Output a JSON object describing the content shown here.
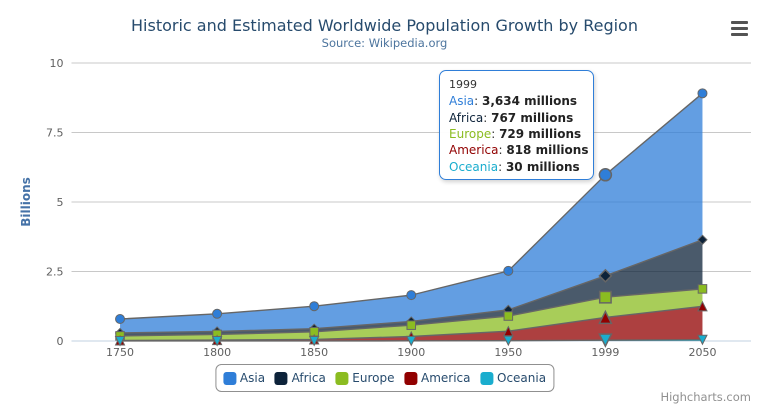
{
  "header": {
    "title": "Historic and Estimated Worldwide Population Growth by Region",
    "subtitle": "Source: Wikipedia.org"
  },
  "chart_data": {
    "type": "area",
    "stacking": "normal",
    "categories": [
      "1750",
      "1800",
      "1850",
      "1900",
      "1950",
      "1999",
      "2050"
    ],
    "series": [
      {
        "name": "Asia",
        "color": "#2f7ed8",
        "marker": "circle",
        "values": [
          502,
          635,
          809,
          947,
          1402,
          3634,
          5268
        ]
      },
      {
        "name": "Africa",
        "color": "#0d233a",
        "marker": "diamond",
        "values": [
          106,
          107,
          111,
          133,
          221,
          767,
          1766
        ]
      },
      {
        "name": "Europe",
        "color": "#8bbc21",
        "marker": "square",
        "values": [
          163,
          203,
          276,
          408,
          547,
          729,
          628
        ]
      },
      {
        "name": "America",
        "color": "#910000",
        "marker": "triangle",
        "values": [
          18,
          31,
          54,
          156,
          339,
          818,
          1201
        ]
      },
      {
        "name": "Oceania",
        "color": "#1aadce",
        "marker": "triangle-down",
        "values": [
          2,
          2,
          2,
          6,
          13,
          30,
          46
        ]
      }
    ],
    "stack_order_bottom_to_top": [
      "Oceania",
      "America",
      "Europe",
      "Africa",
      "Asia"
    ],
    "unit": "millions",
    "ylabel": "Billions",
    "xlabel": "",
    "yaxis": {
      "tick_values_millions": [
        0,
        2500,
        5000,
        7500,
        10000
      ],
      "tick_labels": [
        "0",
        "2.5",
        "5",
        "7.5",
        "10"
      ],
      "max_millions": 10000
    },
    "hover_index": 5,
    "grid_on": true,
    "legend_position": "bottom",
    "style": {
      "line_color": "#666666",
      "fill_opacity": 0.75,
      "grid_color": "#c8c8c8",
      "axis_line_color": "#c0d0e0",
      "axis_label_color": "#606060",
      "yaxis_title_color": "#4572a7"
    }
  },
  "tooltip": {
    "header": "1999",
    "rows": [
      {
        "name": "Asia",
        "color": "#2f7ed8",
        "value": "3,634 millions"
      },
      {
        "name": "Africa",
        "color": "#0d233a",
        "value": "767 millions"
      },
      {
        "name": "Europe",
        "color": "#8bbc21",
        "value": "729 millions"
      },
      {
        "name": "America",
        "color": "#910000",
        "value": "818 millions"
      },
      {
        "name": "Oceania",
        "color": "#1aadce",
        "value": "30 millions"
      }
    ]
  },
  "legend": {
    "items": [
      {
        "label": "Asia",
        "color": "#2f7ed8"
      },
      {
        "label": "Africa",
        "color": "#0d233a"
      },
      {
        "label": "Europe",
        "color": "#8bbc21"
      },
      {
        "label": "America",
        "color": "#910000"
      },
      {
        "label": "Oceania",
        "color": "#1aadce"
      }
    ]
  },
  "credits": {
    "label": "Highcharts.com"
  }
}
